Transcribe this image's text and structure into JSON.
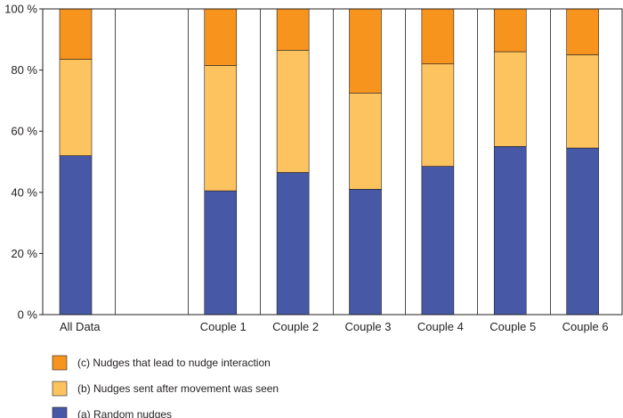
{
  "chart_data": {
    "type": "bar",
    "stacked": true,
    "categories": [
      "All Data",
      "",
      "Couple 1",
      "Couple 2",
      "Couple 3",
      "Couple 4",
      "Couple 5",
      "Couple 6"
    ],
    "series": [
      {
        "name": "(a)  Random nudges",
        "color": "#4658a6",
        "values": [
          52,
          null,
          40.5,
          46.5,
          41,
          48.5,
          55,
          54.5
        ]
      },
      {
        "name": "(b)   Nudges sent after movement was seen",
        "color": "#fdc35f",
        "values": [
          31.5,
          null,
          41,
          40,
          31.5,
          33.5,
          31,
          30.5
        ]
      },
      {
        "name": "(c)  Nudges that lead to nudge interaction",
        "color": "#f7941d",
        "values": [
          16.5,
          null,
          18.5,
          13.5,
          27.5,
          18,
          14,
          15
        ]
      }
    ],
    "yticks": [
      "0 %",
      "20 %",
      "40 %",
      "60 %",
      "80 %",
      "100 %"
    ],
    "ytick_values": [
      0,
      20,
      40,
      60,
      80,
      100
    ],
    "ylim": [
      0,
      100
    ],
    "grid": "vertical",
    "legend_placement": "bottom-left",
    "legend_order": [
      2,
      1,
      0
    ]
  }
}
